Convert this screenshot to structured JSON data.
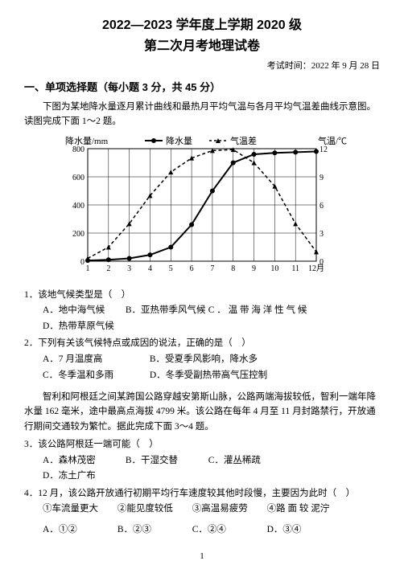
{
  "header": {
    "title_line1": "2022—2023 学年度上学期 2020 级",
    "title_line2": "第二次月考地理试卷",
    "exam_time": "考试时间：2022 年 9 月 28 日"
  },
  "section1": {
    "title": "一、单项选择题（每小题 3 分，共 45 分）"
  },
  "passage1": "下图为某地降水量逐月累计曲线和最热月平均气温与各月平均气温差曲线示意图。读图完成下面 1～2 题。",
  "chart": {
    "left_axis_label": "降水量/mm",
    "right_axis_label": "气温/℃",
    "legend_precip": "降水量",
    "legend_temp": "气温差",
    "y_left": {
      "min": 0,
      "max": 800,
      "step": 200,
      "ticks": [
        0,
        200,
        400,
        600,
        800
      ]
    },
    "y_right": {
      "min": 0,
      "max": 12,
      "step": 3,
      "ticks": [
        0,
        3,
        6,
        9,
        12
      ]
    },
    "x_ticks": [
      1,
      2,
      3,
      4,
      5,
      6,
      7,
      8,
      9,
      10,
      11,
      12
    ],
    "x_last_label": "12月",
    "precip_cumulative": [
      5,
      10,
      20,
      45,
      100,
      260,
      500,
      700,
      760,
      770,
      775,
      780
    ],
    "temp_diff": [
      0.3,
      1.5,
      4,
      7,
      9.5,
      11,
      11.8,
      11.9,
      10.5,
      8,
      4,
      1
    ],
    "bg_color": "#ffffff",
    "axis_color": "#000000",
    "grid_color": "#000000",
    "line_color": "#000000",
    "marker_size": 3,
    "line_width": 1.5
  },
  "q1": {
    "stem": "1．该地气候类型是（　）",
    "A": "A．地中海气候",
    "B": "B．亚热带季风气候",
    "C": "C ． 温 带 海 洋 性 气 候",
    "D": "D．热带草原气候"
  },
  "q2": {
    "stem": "2．下列有关该气候特点或成因的说法，正确的是（　）",
    "A": "A．7 月温度高",
    "B": "B．受夏季风影响，降水多",
    "C": "C．冬季温和多雨",
    "D": "D．冬季受副热带高气压控制"
  },
  "passage2": "智利和阿根廷之间某跨国公路穿越安第斯山脉，公路两端海拔较低，智利一端年降水量 162 毫米，途中最高点海拔 4799 米。该公路在每年 4 月至 11 月封路禁行，开放通行期间交通较为繁忙。据此完成下面 3～4 题。",
  "q3": {
    "stem": "3．该公路阿根廷一端可能（　）",
    "A": "A．森林茂密",
    "B": "B．干湿交替",
    "C": "C．灌丛稀疏",
    "D": "D．冻土广布"
  },
  "q4": {
    "stem": "4．12 月，该公路开放通行初期平均行车速度较其他时段慢，主要因为此时（　）",
    "i1": "①车流量更大",
    "i2": "②能见度较低",
    "i3": "③高温易疲劳",
    "i4": "④路 面 较 泥泞",
    "A": "A．①②",
    "B": "B．②③",
    "C": "C．②④",
    "D": "D．③④"
  },
  "page_number": "1"
}
